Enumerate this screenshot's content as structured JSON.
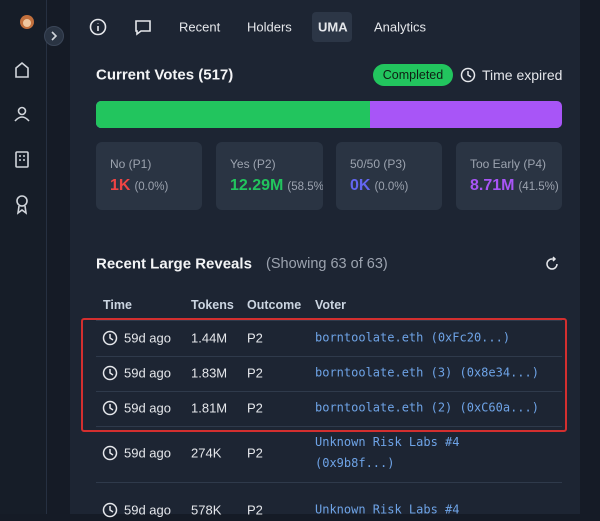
{
  "tabs": [
    "Recent",
    "Holders",
    "UMA",
    "Analytics"
  ],
  "votes": {
    "title": "Current Votes (517)",
    "status": "Completed",
    "time_note": "Time expired",
    "options": [
      {
        "label": "No (P1)",
        "amount": "1K",
        "share": "(0.0%)"
      },
      {
        "label": "Yes (P2)",
        "amount": "12.29M",
        "share": "(58.5%)"
      },
      {
        "label": "50/50 (P3)",
        "amount": "0K",
        "share": "(0.0%)"
      },
      {
        "label": "Too Early (P4)",
        "amount": "8.71M",
        "share": "(41.5%)"
      }
    ]
  },
  "reveals": {
    "title": "Recent Large Reveals",
    "subtitle": "(Showing 63 of 63)",
    "columns": [
      "Time",
      "Tokens",
      "Outcome",
      "Voter"
    ],
    "rows": [
      [
        "59d ago",
        "1.44M",
        "P2",
        "borntoolate.eth (0xFc20...)"
      ],
      [
        "59d ago",
        "1.83M",
        "P2",
        "borntoolate.eth (3) (0x8e34...)"
      ],
      [
        "59d ago",
        "1.81M",
        "P2",
        "borntoolate.eth (2) (0xC60a...)"
      ],
      [
        "59d ago",
        "274K",
        "P2",
        "Unknown Risk Labs #4 (0x9b8f...)"
      ],
      [
        "59d ago",
        "578K",
        "P2",
        "Unknown Risk Labs #4"
      ]
    ]
  }
}
